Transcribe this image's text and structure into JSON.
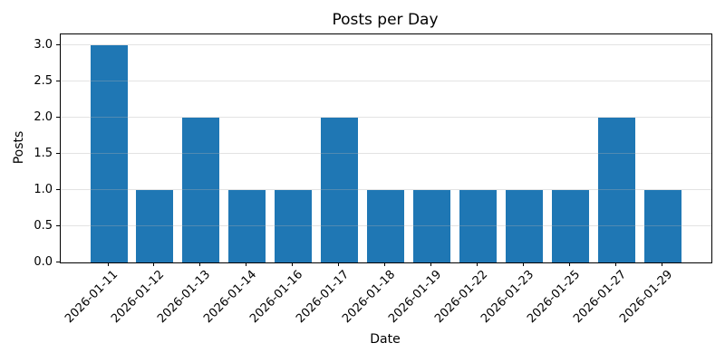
{
  "chart_data": {
    "type": "bar",
    "title": "Posts per Day",
    "xlabel": "Date",
    "ylabel": "Posts",
    "categories": [
      "2026-01-11",
      "2026-01-12",
      "2026-01-13",
      "2026-01-14",
      "2026-01-16",
      "2026-01-17",
      "2026-01-18",
      "2026-01-19",
      "2026-01-22",
      "2026-01-23",
      "2026-01-25",
      "2026-01-27",
      "2026-01-29"
    ],
    "values": [
      3,
      1,
      2,
      1,
      1,
      2,
      1,
      1,
      1,
      1,
      1,
      2,
      1
    ],
    "yticks": [
      0.0,
      0.5,
      1.0,
      1.5,
      2.0,
      2.5,
      3.0
    ],
    "ytick_labels": [
      "0.0",
      "0.5",
      "1.0",
      "1.5",
      "2.0",
      "2.5",
      "3.0"
    ],
    "ylim": [
      0,
      3.15
    ],
    "grid": true,
    "legend": "none",
    "bar_color": "#1f77b4",
    "axis_color": "#000000",
    "gridline_color": "#b0b0b0"
  }
}
